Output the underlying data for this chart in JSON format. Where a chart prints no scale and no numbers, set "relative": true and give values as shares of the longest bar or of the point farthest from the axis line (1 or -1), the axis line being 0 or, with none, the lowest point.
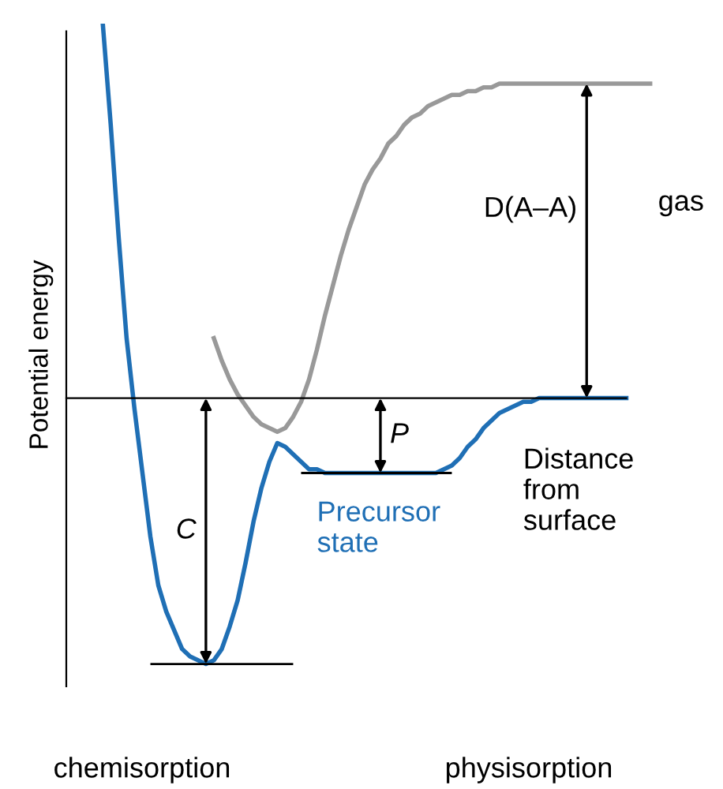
{
  "chart_data": {
    "type": "line",
    "relative": true,
    "ylabel": "Potential energy",
    "legend": false,
    "marker": "none",
    "line_style": "solid",
    "categories": [
      null,
      null,
      null,
      null,
      null,
      null,
      null,
      null,
      null,
      null,
      null,
      null,
      null,
      null,
      null,
      null,
      null,
      null,
      null,
      null,
      null,
      null,
      null,
      null,
      null,
      null,
      null,
      null,
      null,
      null,
      null,
      null,
      null,
      null,
      null,
      null,
      null,
      null,
      null,
      null,
      null,
      null,
      null,
      null,
      null,
      null,
      null,
      null,
      null,
      null,
      null,
      null,
      null,
      null,
      null,
      null,
      null,
      null,
      null,
      null,
      null,
      null,
      null,
      null,
      null,
      null,
      null,
      null,
      null,
      null
    ],
    "series": [
      {
        "color": "#1f6fb5",
        "values": [
          1.0,
          0.73,
          0.43,
          0.16,
          -0.03,
          -0.2,
          -0.37,
          -0.5,
          -0.57,
          -0.62,
          -0.67,
          -0.69,
          -0.7,
          -0.71,
          -0.7,
          -0.67,
          -0.61,
          -0.54,
          -0.44,
          -0.33,
          -0.24,
          -0.17,
          -0.12,
          -0.13,
          -0.15,
          -0.17,
          -0.19,
          -0.19,
          -0.2,
          -0.2,
          -0.2,
          -0.2,
          -0.2,
          -0.2,
          -0.2,
          -0.2,
          -0.2,
          -0.2,
          -0.2,
          -0.2,
          -0.2,
          -0.2,
          -0.2,
          -0.19,
          -0.18,
          -0.16,
          -0.13,
          -0.11,
          -0.08,
          -0.06,
          -0.04,
          -0.03,
          -0.02,
          -0.01,
          -0.01,
          0,
          0,
          0,
          0,
          0,
          0,
          0,
          0,
          0,
          0,
          0,
          0,
          null,
          null,
          null
        ]
      },
      {
        "color": "#999999",
        "values": [
          null,
          null,
          null,
          null,
          null,
          null,
          null,
          null,
          null,
          null,
          null,
          null,
          null,
          null,
          0.16,
          0.1,
          0.05,
          0.01,
          -0.02,
          -0.05,
          -0.07,
          -0.08,
          -0.09,
          -0.08,
          -0.05,
          -0.01,
          0.05,
          0.13,
          0.22,
          0.3,
          0.38,
          0.45,
          0.51,
          0.57,
          0.61,
          0.64,
          0.68,
          0.7,
          0.73,
          0.75,
          0.76,
          0.78,
          0.79,
          0.8,
          0.81,
          0.81,
          0.82,
          0.82,
          0.83,
          0.83,
          0.84,
          0.84,
          0.84,
          0.84,
          0.84,
          0.84,
          0.84,
          0.84,
          0.84,
          0.84,
          0.84,
          0.84,
          0.84,
          0.84,
          0.84,
          0.84,
          0.84,
          0.84,
          0.84,
          0.84
        ]
      }
    ],
    "annotations": [
      "C",
      "P",
      "D(A–A)",
      "gas",
      "Precursor\nstate",
      "Distance\nfrom\nsurface",
      "chemisorption",
      "physisorption"
    ]
  }
}
